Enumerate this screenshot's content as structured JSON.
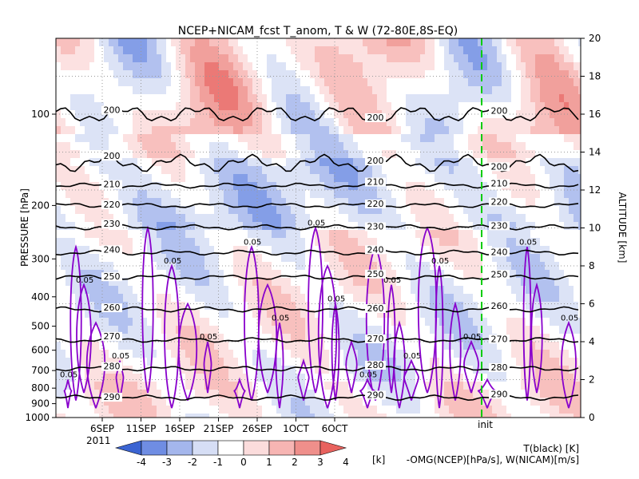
{
  "chart_data": {
    "type": "heatmap",
    "title": "NCEP+NICAM_fcst T_anom, T & W  (72-80E,8S-EQ)",
    "ylabel_left": "PRESSURE [hPa]",
    "ylabel_right": "ALTITUDE [km]",
    "pressure_ticks": [
      100,
      200,
      300,
      400,
      500,
      600,
      700,
      800,
      900,
      1000
    ],
    "altitude_ticks": [
      0,
      2,
      4,
      6,
      8,
      10,
      12,
      14,
      16,
      18,
      20
    ],
    "x_ticks": [
      "6SEP",
      "11SEP",
      "16SEP",
      "21SEP",
      "26SEP",
      "1OCT",
      "6OCT"
    ],
    "year_label": "2011",
    "init_label": "init",
    "colorbar": {
      "ticks": [
        "-4",
        "-3",
        "-2",
        "-1",
        "0",
        "1",
        "2",
        "3",
        "4"
      ],
      "unit": "[k]",
      "colors": [
        "#3b64d2",
        "#6f8de3",
        "#a4b6ec",
        "#d6def5",
        "#ffffff",
        "#fbdcdc",
        "#f7b5b3",
        "#ef8f8b",
        "#e8625e"
      ]
    },
    "legend_black": "T(black) [K]",
    "legend_purple": "-OMG(NCEP)[hPa/s], W(NICAM)[m/s]",
    "temperature_contours": [
      {
        "label": "200",
        "pressure": 100
      },
      {
        "label": "200",
        "pressure": 145
      },
      {
        "label": "210",
        "pressure": 172
      },
      {
        "label": "220",
        "pressure": 200
      },
      {
        "label": "230",
        "pressure": 236
      },
      {
        "label": "240",
        "pressure": 286
      },
      {
        "label": "250",
        "pressure": 345
      },
      {
        "label": "260",
        "pressure": 440
      },
      {
        "label": "270",
        "pressure": 555
      },
      {
        "label": "280",
        "pressure": 690
      },
      {
        "label": "290",
        "pressure": 860
      }
    ],
    "omega_label": "0.05"
  }
}
